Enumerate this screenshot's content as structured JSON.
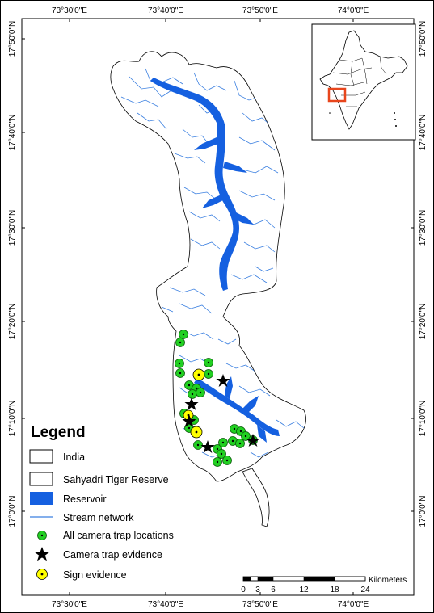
{
  "map": {
    "top_ticks": [
      "73°30'0\"E",
      "73°40'0\"E",
      "73°50'0\"E",
      "74°0'0\"E"
    ],
    "bottom_ticks": [
      "73°30'0\"E",
      "73°40'0\"E",
      "73°50'0\"E",
      "74°0'0\"E"
    ],
    "left_ticks": [
      "17°50'0\"N",
      "17°40'0\"N",
      "17°30'0\"N",
      "17°20'0\"N",
      "17°10'0\"N",
      "17°0'0\"N"
    ],
    "right_ticks": [
      "17°50'0\"N",
      "17°40'0\"N",
      "17°30'0\"N",
      "17°20'0\"N",
      "17°10'0\"N",
      "17°0'0\"N"
    ]
  },
  "legend": {
    "title": "Legend",
    "items": [
      {
        "label": "India",
        "symbol": "box-outline"
      },
      {
        "label": "Sahyadri Tiger Reserve",
        "symbol": "box-outline"
      },
      {
        "label": "Reservoir",
        "symbol": "box-fill",
        "color": "#1560e0"
      },
      {
        "label": "Stream network",
        "symbol": "line",
        "color": "#3a7fe0"
      },
      {
        "label": "All camera trap locations",
        "symbol": "green-dot",
        "color": "#22d022"
      },
      {
        "label": "Camera trap evidence",
        "symbol": "black-star",
        "color": "#000000"
      },
      {
        "label": "Sign evidence",
        "symbol": "yellow-dot",
        "color": "#ffff00"
      }
    ]
  },
  "scale_bar": {
    "unit": "Kilometers",
    "labels": [
      "0",
      "3",
      "6",
      "12",
      "18",
      "24"
    ]
  },
  "colors": {
    "reservoir": "#1560e0",
    "stream": "#3a7fe0",
    "camera_trap": "#22d022",
    "sign": "#ffff00",
    "inset_highlight": "#e8461c"
  }
}
